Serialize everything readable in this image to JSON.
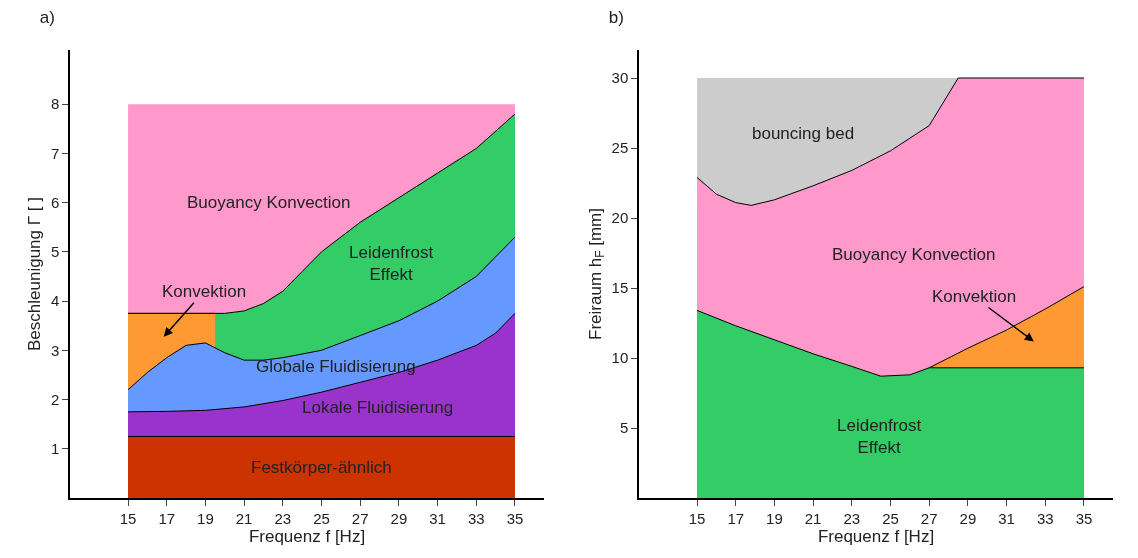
{
  "chart_data": [
    {
      "type": "area",
      "title": "a)",
      "xlabel": "Frequenz f [Hz]",
      "ylabel": "Beschleunigung Γ [ ]",
      "xlim": [
        12,
        36.5
      ],
      "ylim": [
        0,
        9.1
      ],
      "xticks": [
        15,
        17,
        19,
        21,
        23,
        25,
        27,
        29,
        31,
        33,
        35
      ],
      "yticks": [
        1,
        2,
        3,
        4,
        5,
        6,
        7,
        8
      ],
      "grid": false,
      "series": [
        {
          "name": "Buoyancy Konvection",
          "color": "#ff99cc",
          "x": [
            15,
            35
          ],
          "values": [
            8,
            8
          ]
        },
        {
          "name": "Leidenfrost\nEffekt",
          "color": "#33cc66",
          "x": [
            15,
            19,
            20,
            21,
            22,
            23,
            24,
            25,
            27,
            29,
            31,
            33,
            35
          ],
          "values": [
            3.75,
            3.75,
            3.75,
            3.8,
            3.95,
            4.2,
            4.6,
            5.0,
            5.6,
            6.1,
            6.6,
            7.1,
            7.8
          ]
        },
        {
          "name": "Konvektion",
          "color": "#ff9933",
          "x": [
            15,
            19.5
          ],
          "values": [
            3.75,
            3.75
          ]
        },
        {
          "name": "Globale Fluidisierung",
          "color": "#6699ff",
          "x": [
            15,
            16,
            17,
            18,
            19,
            20,
            21,
            22,
            23,
            25,
            27,
            29,
            31,
            33,
            35
          ],
          "values": [
            2.2,
            2.55,
            2.85,
            3.1,
            3.15,
            2.95,
            2.8,
            2.8,
            2.85,
            3.0,
            3.3,
            3.6,
            4.0,
            4.5,
            5.3
          ]
        },
        {
          "name": "Lokale Fluidisierung",
          "color": "#9933cc",
          "x": [
            15,
            17,
            19,
            21,
            23,
            25,
            27,
            29,
            31,
            33,
            34,
            35
          ],
          "values": [
            1.75,
            1.76,
            1.78,
            1.85,
            1.98,
            2.15,
            2.35,
            2.55,
            2.8,
            3.1,
            3.35,
            3.75
          ]
        },
        {
          "name": "Festkörper-ähnlich",
          "color": "#cc3300",
          "x": [
            15,
            35
          ],
          "values": [
            1.25,
            1.25
          ]
        }
      ]
    },
    {
      "type": "area",
      "title": "b)",
      "xlabel": "Frequenz f [Hz]",
      "ylabel": "Freiraum h$_{F}$ [mm]",
      "xlim": [
        12,
        36.5
      ],
      "ylim": [
        0,
        32
      ],
      "xticks": [
        15,
        17,
        19,
        21,
        23,
        25,
        27,
        29,
        31,
        33,
        35
      ],
      "yticks": [
        5,
        10,
        15,
        20,
        25,
        30
      ],
      "grid": false,
      "series": [
        {
          "name": "bouncing bed",
          "color": "#cccccc",
          "x": [
            15,
            28.5
          ],
          "values": [
            30,
            30
          ]
        },
        {
          "name": "Buoyancy Konvection",
          "color": "#ff99cc",
          "x": [
            15,
            16,
            17,
            17.8,
            19,
            21,
            23,
            25,
            27,
            28.5,
            35
          ],
          "values": [
            22.9,
            21.7,
            21.1,
            20.9,
            21.3,
            22.3,
            23.4,
            24.8,
            26.6,
            30,
            30
          ]
        },
        {
          "name": "Konvektion",
          "color": "#ff9933",
          "x": [
            27,
            29,
            31,
            33,
            35
          ],
          "values": [
            9.3,
            10.7,
            12.0,
            13.5,
            15.1
          ]
        },
        {
          "name": "Leidenfrost\nEffekt",
          "color": "#33cc66",
          "x": [
            15,
            17,
            19,
            21,
            23,
            24.5,
            26,
            27,
            35
          ],
          "values": [
            13.4,
            12.3,
            11.3,
            10.3,
            9.4,
            8.7,
            8.8,
            9.3,
            9.3
          ]
        }
      ]
    }
  ]
}
